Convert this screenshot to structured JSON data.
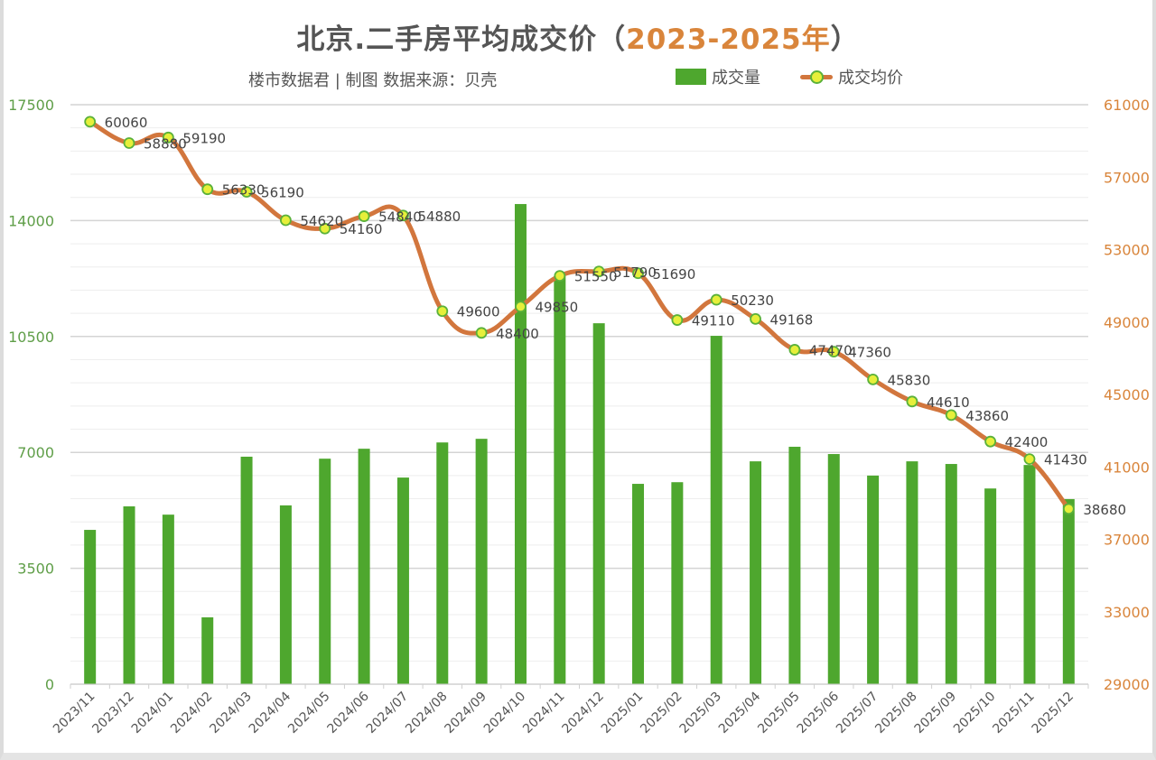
{
  "header": {
    "title_main": "北京.二手房平均成交价（",
    "title_years": "2023-2025年",
    "title_close": "）",
    "subtitle": "楼市数据君 | 制图   数据来源：贝壳"
  },
  "legend": {
    "bar_label": "成交量",
    "line_label": "成交均价"
  },
  "colors": {
    "bar": "#4ea72e",
    "line": "#d2763d",
    "marker_fill": "#e6ef3a",
    "marker_stroke": "#5ab13a",
    "left_axis_text": "#5f9e48",
    "right_axis_text": "#d9853b",
    "title_accent": "#d9853b"
  },
  "chart_data": {
    "type": "bar",
    "title": "北京.二手房平均成交价（2023-2025年）",
    "subtitle": "楼市数据君 | 制图   数据来源：贝壳",
    "xlabel": "",
    "ylabel": "",
    "categories": [
      "2023/11",
      "2023/12",
      "2024/01",
      "2024/02",
      "2024/03",
      "2024/04",
      "2024/05",
      "2024/06",
      "2024/07",
      "2024/08",
      "2024/09",
      "2024/10",
      "2024/11",
      "2024/12",
      "2025/01",
      "2025/02",
      "2025/03",
      "2025/04",
      "2025/05",
      "2025/06",
      "2025/07",
      "2025/08",
      "2025/09",
      "2025/10",
      "2025/11",
      "2025/12"
    ],
    "series": [
      {
        "name": "成交量",
        "type": "bar",
        "axis": "left",
        "values": [
          4660,
          5370,
          5120,
          2020,
          6870,
          5400,
          6810,
          7110,
          6240,
          7300,
          7410,
          14500,
          12320,
          10900,
          6050,
          6100,
          10520,
          6730,
          7170,
          6950,
          6300,
          6730,
          6650,
          5910,
          6620,
          5590
        ]
      },
      {
        "name": "成交均价",
        "type": "line",
        "axis": "right",
        "values": [
          60060,
          58880,
          59190,
          56330,
          56190,
          54620,
          54160,
          54840,
          54880,
          49600,
          48400,
          49850,
          51550,
          51790,
          51690,
          49110,
          50230,
          49168,
          47470,
          47360,
          45830,
          44610,
          43860,
          42400,
          41430,
          38680
        ]
      }
    ],
    "y_left": {
      "min": 0,
      "max": 17500,
      "ticks": [
        0,
        3500,
        7000,
        10500,
        14000,
        17500
      ]
    },
    "y_right": {
      "min": 29000,
      "max": 61000,
      "ticks": [
        29000,
        33000,
        37000,
        41000,
        45000,
        49000,
        53000,
        57000,
        61000
      ]
    },
    "grid": true,
    "legend_position": "top-right"
  }
}
